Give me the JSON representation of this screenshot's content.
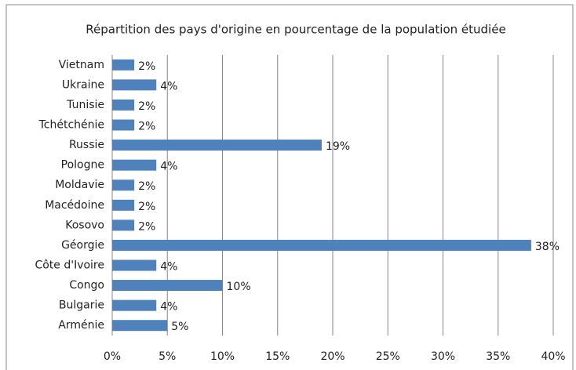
{
  "chart_data": {
    "type": "hbar",
    "title": "Répartition des pays d'origine en pourcentage de la population étudiée",
    "categories": [
      "Vietnam",
      "Ukraine",
      "Tunisie",
      "Tchétchénie",
      "Russie",
      "Pologne",
      "Moldavie",
      "Macédoine",
      "Kosovo",
      "Géorgie",
      "Côte d'Ivoire",
      "Congo",
      "Bulgarie",
      "Arménie"
    ],
    "values": [
      2,
      4,
      2,
      2,
      19,
      4,
      2,
      2,
      2,
      38,
      4,
      10,
      4,
      5
    ],
    "value_labels": [
      "2%",
      "4%",
      "2%",
      "2%",
      "19%",
      "4%",
      "2%",
      "2%",
      "2%",
      "38%",
      "4%",
      "10%",
      "4%",
      "5%"
    ],
    "color": "#4f81bd",
    "xlim": [
      0,
      40
    ],
    "xticks": [
      {
        "value": 0,
        "label": "0%"
      },
      {
        "value": 5,
        "label": "5%"
      },
      {
        "value": 10,
        "label": "10%"
      },
      {
        "value": 15,
        "label": "15%"
      },
      {
        "value": 20,
        "label": "20%"
      },
      {
        "value": 25,
        "label": "25%"
      },
      {
        "value": 30,
        "label": "30%"
      },
      {
        "value": 35,
        "label": "35%"
      },
      {
        "value": 40,
        "label": "40%"
      }
    ],
    "grid": true
  }
}
